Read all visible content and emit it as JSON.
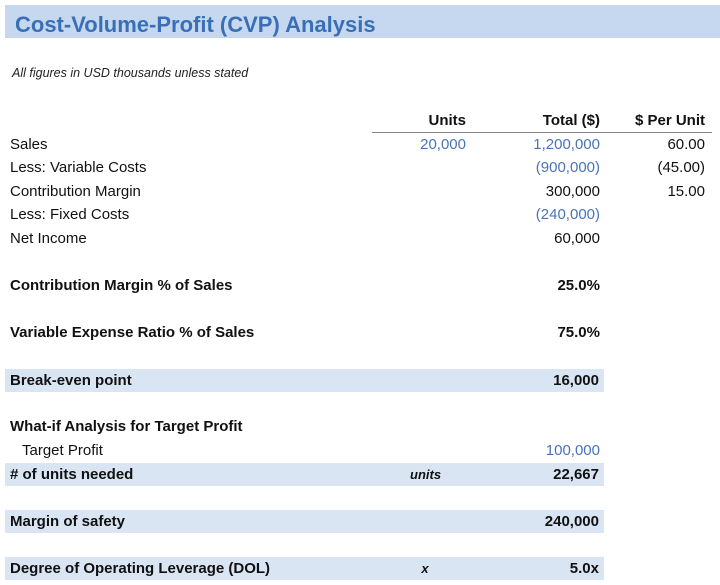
{
  "title": "Cost-Volume-Profit (CVP) Analysis",
  "subtitle": "All figures in USD thousands unless stated",
  "headers": {
    "units": "Units",
    "total": "Total ($)",
    "per_unit": "$ Per Unit"
  },
  "income": [
    {
      "label": "Sales",
      "units": "20,000",
      "total": "1,200,000",
      "per_unit": "60.00"
    },
    {
      "label": "Less: Variable Costs",
      "units": "",
      "total": "(900,000)",
      "per_unit": "(45.00)"
    },
    {
      "label": "Contribution Margin",
      "units": "",
      "total": "300,000",
      "per_unit": "15.00"
    },
    {
      "label": "Less: Fixed Costs",
      "units": "",
      "total": "(240,000)",
      "per_unit": ""
    },
    {
      "label": "Net Income",
      "units": "",
      "total": "60,000",
      "per_unit": ""
    }
  ],
  "cm_pct": {
    "label": "Contribution Margin % of Sales",
    "value": "25.0%"
  },
  "ver": {
    "label": "Variable Expense Ratio % of Sales",
    "value": "75.0%"
  },
  "breakeven": {
    "label": "Break-even point",
    "value": "16,000"
  },
  "whatif": {
    "heading": "What-if Analysis for Target Profit",
    "target_label": "Target Profit",
    "target_value": "100,000",
    "units_label": "# of units needed",
    "units_unit": "units",
    "units_value": "22,667"
  },
  "mos": {
    "label": "Margin of safety",
    "value": "240,000"
  },
  "dol": {
    "label": "Degree of Operating Leverage (DOL)",
    "unit": "x",
    "value": "5.0x"
  },
  "colors": {
    "title_band": "#c5d8f0",
    "highlight_band": "#dae5f4",
    "input_blue": "#4a73b5",
    "title_text": "#3a6fb5"
  }
}
